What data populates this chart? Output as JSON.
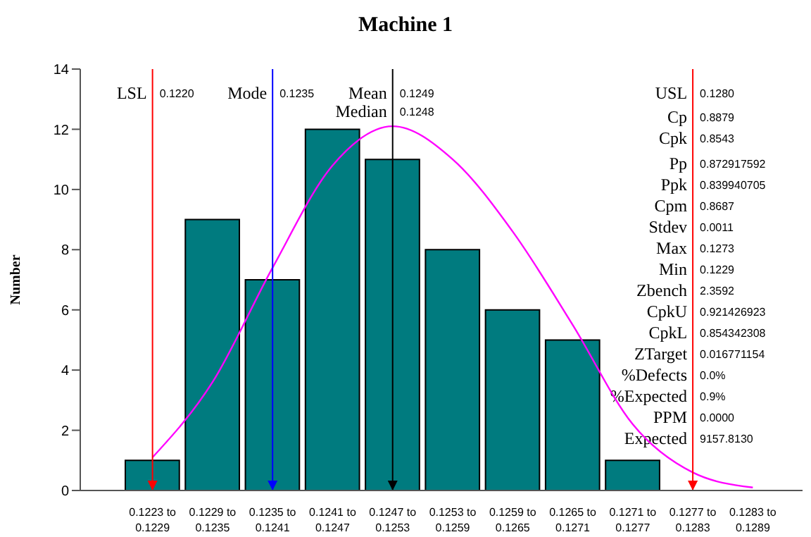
{
  "chart_data": {
    "type": "bar",
    "title": "Machine 1",
    "ylabel": "Number",
    "categories": [
      "0.1223 to 0.1229",
      "0.1229 to 0.1235",
      "0.1235 to 0.1241",
      "0.1241 to 0.1247",
      "0.1247 to 0.1253",
      "0.1253 to 0.1259",
      "0.1259 to 0.1265",
      "0.1265 to 0.1271",
      "0.1271 to 0.1277",
      "0.1277 to 0.1283",
      "0.1283 to 0.1289"
    ],
    "series": [
      {
        "color": "#007b7f",
        "values": [
          1,
          9,
          7,
          12,
          11,
          8,
          6,
          5,
          1,
          0,
          0
        ]
      },
      {
        "type": "line",
        "color": "#ff00ff",
        "values": [
          1.1,
          3.6,
          7.4,
          10.8,
          12.1,
          11.0,
          8.6,
          5.5,
          2.2,
          0.6,
          0.1
        ]
      }
    ],
    "ylim": [
      0,
      14
    ],
    "yticks": [
      0,
      2,
      4,
      6,
      8,
      10,
      12,
      14
    ],
    "ref_lines": [
      {
        "axis": "x",
        "value": "0.1223 to 0.1229",
        "label": "LSL 0.1220",
        "color": "#ff0000"
      },
      {
        "axis": "x",
        "value": "0.1235 to 0.1241",
        "label": "Mode 0.1235",
        "color": "#0000ff"
      },
      {
        "axis": "x",
        "value": "0.1247 to 0.1253",
        "label": "Mean 0.1249",
        "color": "#000000"
      },
      {
        "axis": "x",
        "value": "0.1277 to 0.1283",
        "label": "USL 0.1280",
        "color": "#ff0000"
      }
    ],
    "annotations": [
      {
        "text": "Median 0.1248",
        "x": "0.1247 to 0.1253"
      },
      "Cp 0.8879",
      "Cpk 0.8543",
      "Pp 0.872917592",
      "Ppk 0.839940705",
      "Cpm 0.8687",
      "Stdev 0.0011",
      "Max 0.1273",
      "Min 0.1229",
      "Zbench 2.3592",
      "CpkU 0.921426923",
      "CpkL 0.854342308",
      "ZTarget 0.016771154",
      "%Defects 0.0%",
      "%Expected 0.9%",
      "PPM 0.0000",
      "Expected 9157.8130"
    ]
  }
}
